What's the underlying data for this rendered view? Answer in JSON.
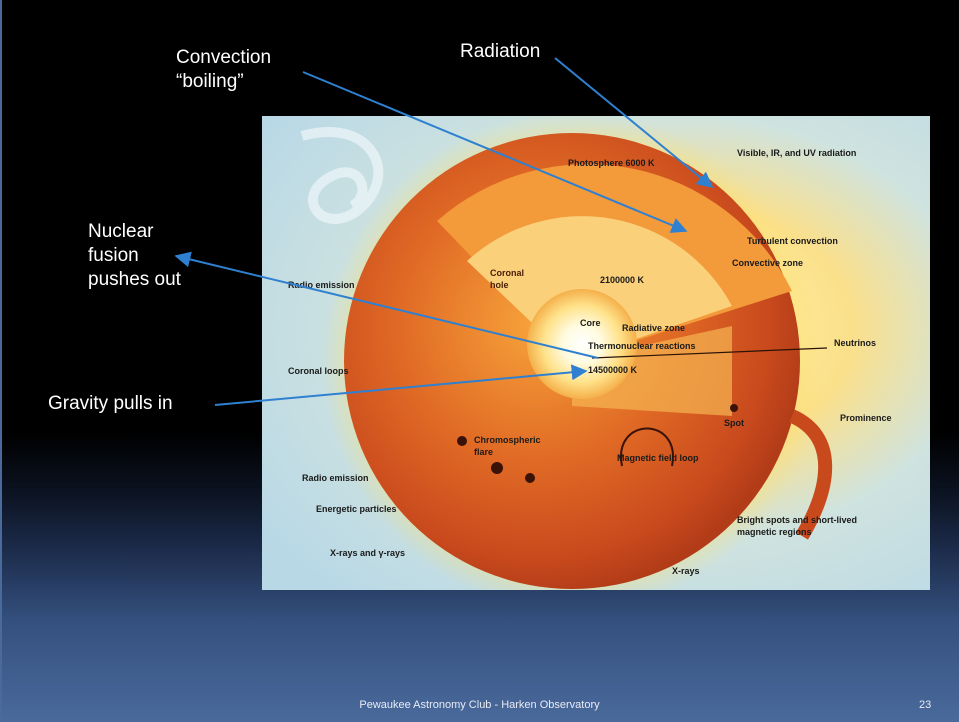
{
  "slide": {
    "annotations": {
      "convection": "Convection\n“boiling”",
      "radiation": "Radiation",
      "fusion": "Nuclear\nfusion\npushes out",
      "gravity": "Gravity pulls in"
    },
    "footer": "Pewaukee Astronomy Club - Harken Observatory",
    "page_number": "23"
  },
  "figure": {
    "labels": {
      "photosphere": "Photosphere 6000 K",
      "visible_radiation": "Visible, IR, and UV radiation",
      "turbulent": "Turbulent convection",
      "convective_zone": "Convective zone",
      "radio1": "Radio emission",
      "coronal_hole_1": "Coronal",
      "coronal_hole_2": "hole",
      "temp_2100000": "2100000 K",
      "core": "Core",
      "radiative_zone": "Radiative zone",
      "thermonuclear": "Thermonuclear reactions",
      "neutrinos": "Neutrinos",
      "coronal_loops": "Coronal loops",
      "temp_core": "14500000 K",
      "prominence": "Prominence",
      "spot": "Spot",
      "chromo_1": "Chromospheric",
      "chromo_2": "flare",
      "magnetic_loop": "Magnetic field loop",
      "radio2": "Radio emission",
      "energetic": "Energetic particles",
      "bright_1": "Bright spots and short-lived",
      "bright_2": "magnetic regions",
      "xrays_gamma": "X-rays and γ-rays",
      "xrays": "X-rays"
    }
  },
  "colors": {
    "arrow": "#2f80d0",
    "footer_bar": "#4a6a9c"
  }
}
